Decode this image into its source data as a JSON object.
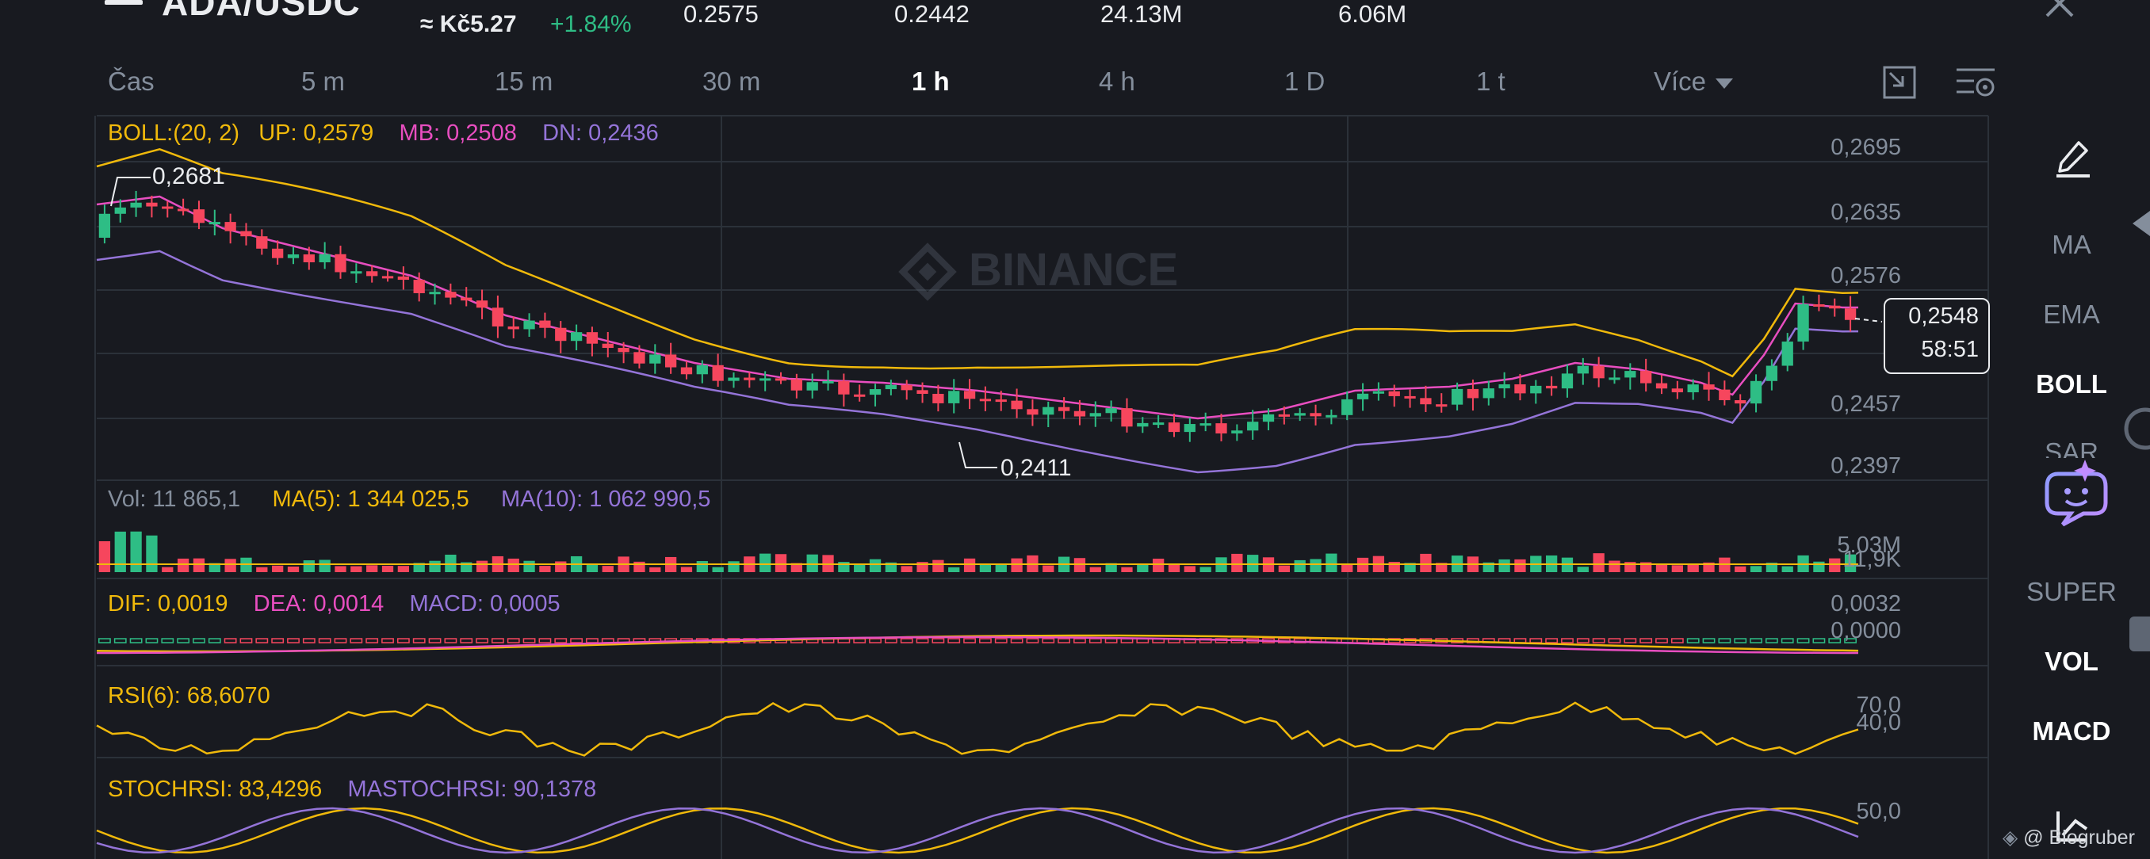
{
  "header": {
    "pair": "ADA/USDC",
    "price_local": "≈ Kč5.27",
    "change_pct": "+1.84%",
    "stats": [
      "0.2575",
      "0.2442",
      "24.13M",
      "6.06M"
    ]
  },
  "timeframes": {
    "items": [
      "Čas",
      "5 m",
      "15 m",
      "30 m",
      "1 h",
      "4 h",
      "1 D",
      "1 t",
      "Více"
    ],
    "active": "1 h"
  },
  "boll": {
    "label": "BOLL:(20, 2)",
    "up": "UP: 0,2579",
    "mb": "MB: 0,2508",
    "dn": "DN: 0,2436"
  },
  "price_axis": [
    "0,2695",
    "0,2635",
    "0,2576",
    "0,2457",
    "0,2397"
  ],
  "current_price": {
    "price": "0,2548",
    "countdown": "58:51"
  },
  "annotations": {
    "high": "0,2681",
    "low": "0,2411"
  },
  "watermark": "BINANCE",
  "vol": {
    "vol": "Vol: 11 865,1",
    "ma5": "MA(5): 1 344 025,5",
    "ma10": "MA(10): 1 062 990,5",
    "axis_top": "5.03M",
    "axis_bottom": "11,9K"
  },
  "macd": {
    "dif": "DIF: 0,0019",
    "dea": "DEA: 0,0014",
    "macd": "MACD: 0,0005",
    "axis_top": "0,0032",
    "axis_bottom": "0,0000"
  },
  "rsi": {
    "label": "RSI(6): 68,6070",
    "axis_top": "70,0",
    "axis_bottom": "40,0"
  },
  "stochrsi": {
    "stoch": "STOCHRSI: 83,4296",
    "mastoch": "MASTOCHRSI: 90,1378",
    "axis": "50,0"
  },
  "sidebar": {
    "items": [
      "MA",
      "EMA",
      "BOLL",
      "SAR",
      "SUPER",
      "VOL",
      "MACD"
    ],
    "bold": [
      "BOLL",
      "VOL",
      "MACD"
    ]
  },
  "watermark_user": "@ Blogruber",
  "colors": {
    "background": "#181a20",
    "up": "#2ebd85",
    "down": "#f6465d",
    "boll_up": "#f0b90b",
    "boll_mb": "#e84ec0",
    "boll_dn": "#9474d8"
  },
  "icons": [
    "menu-icon",
    "close-icon",
    "expand-icon",
    "chart-settings-icon",
    "pencil-icon",
    "collapse-arrow-icon",
    "ai-assistant-icon",
    "draw-tool-icon"
  ]
}
